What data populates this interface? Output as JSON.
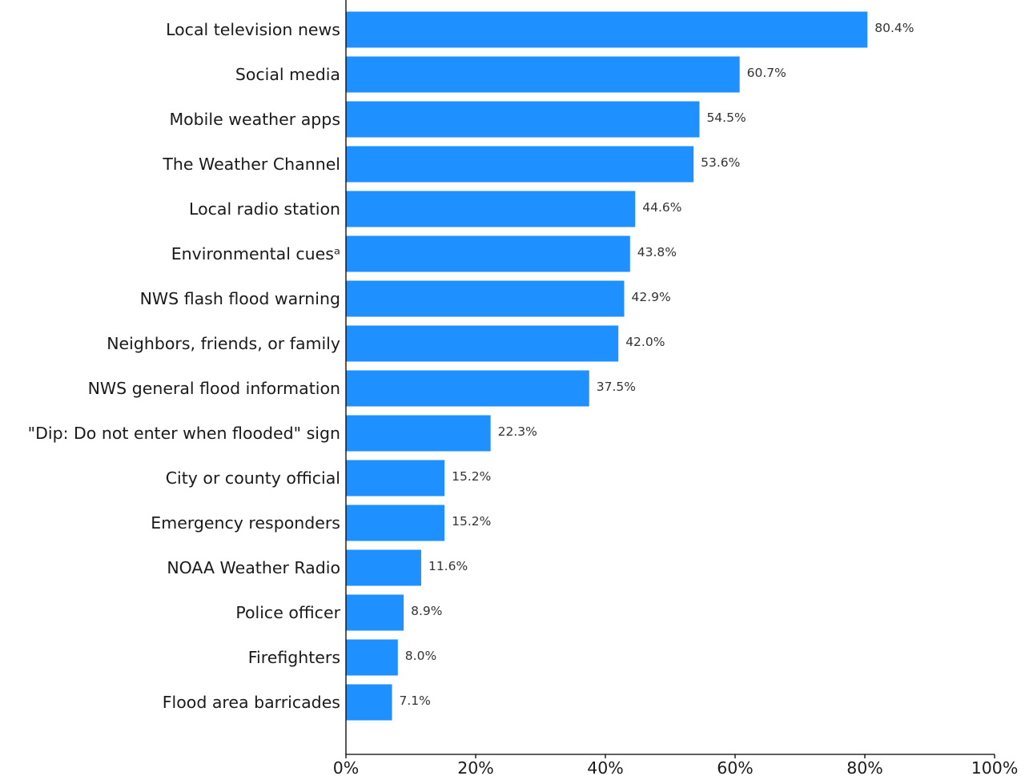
{
  "chart_data": {
    "type": "bar",
    "orientation": "horizontal",
    "categories": [
      "Local television news",
      "Social media",
      "Mobile weather apps",
      "The Weather Channel",
      "Local radio station",
      "Environmental cuesᵃ",
      "NWS flash flood warning",
      "Neighbors, friends, or family",
      "NWS general flood information",
      "\"Dip: Do not enter when flooded\" sign",
      "City or county official",
      "Emergency responders",
      "NOAA Weather Radio",
      "Police officer",
      "Firefighters",
      "Flood area barricades"
    ],
    "values": [
      80.4,
      60.7,
      54.5,
      53.6,
      44.6,
      43.8,
      42.9,
      42.0,
      37.5,
      22.3,
      15.2,
      15.2,
      11.6,
      8.9,
      8.0,
      7.1
    ],
    "value_labels": [
      "80.4%",
      "60.7%",
      "54.5%",
      "53.6%",
      "44.6%",
      "43.8%",
      "42.9%",
      "42.0%",
      "37.5%",
      "22.3%",
      "15.2%",
      "15.2%",
      "11.6%",
      "8.9%",
      "8.0%",
      "7.1%"
    ],
    "xlim": [
      0,
      100
    ],
    "x_ticks": [
      0,
      20,
      40,
      60,
      80,
      100
    ],
    "x_tick_labels": [
      "0%",
      "20%",
      "40%",
      "60%",
      "80%",
      "100%"
    ],
    "title": "",
    "xlabel": "",
    "ylabel": "",
    "grid": false,
    "bar_color": "#1e90ff"
  }
}
